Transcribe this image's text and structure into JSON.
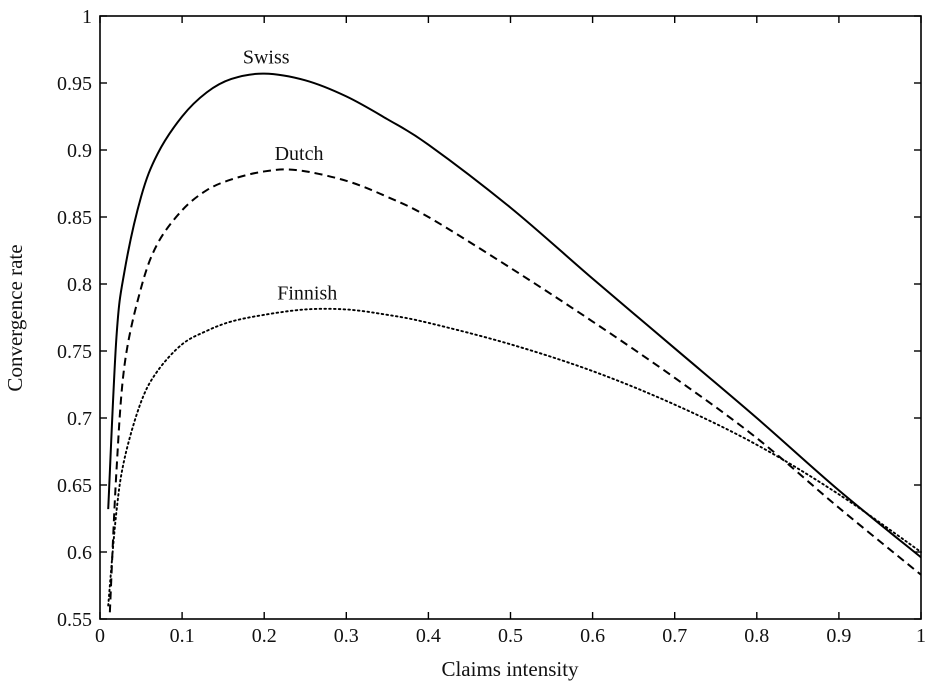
{
  "chart_data": {
    "type": "line",
    "title": "",
    "xlabel": "Claims intensity",
    "ylabel": "Convergence rate",
    "xlim": [
      0,
      1
    ],
    "ylim": [
      0.55,
      1
    ],
    "xticks": [
      "0",
      "0.1",
      "0.2",
      "0.3",
      "0.4",
      "0.5",
      "0.6",
      "0.7",
      "0.8",
      "0.9",
      "1"
    ],
    "yticks": [
      "0.55",
      "0.6",
      "0.65",
      "0.7",
      "0.75",
      "0.8",
      "0.85",
      "0.9",
      "0.95",
      "1"
    ],
    "grid": false,
    "legend": "none",
    "series": [
      {
        "name": "Swiss",
        "style": "solid",
        "color": "#000000",
        "x": [
          0.01,
          0.02,
          0.03,
          0.05,
          0.07,
          0.1,
          0.13,
          0.16,
          0.2,
          0.25,
          0.3,
          0.35,
          0.4,
          0.5,
          0.6,
          0.7,
          0.8,
          0.9,
          1.0
        ],
        "y": [
          0.632,
          0.76,
          0.81,
          0.865,
          0.897,
          0.925,
          0.943,
          0.953,
          0.957,
          0.952,
          0.94,
          0.923,
          0.904,
          0.857,
          0.804,
          0.752,
          0.7,
          0.646,
          0.596
        ]
      },
      {
        "name": "Dutch",
        "style": "dashed",
        "color": "#000000",
        "x": [
          0.012,
          0.02,
          0.03,
          0.05,
          0.07,
          0.1,
          0.13,
          0.16,
          0.2,
          0.24,
          0.3,
          0.35,
          0.4,
          0.5,
          0.6,
          0.7,
          0.8,
          0.9,
          1.0
        ],
        "y": [
          0.555,
          0.66,
          0.74,
          0.797,
          0.83,
          0.855,
          0.87,
          0.878,
          0.884,
          0.885,
          0.877,
          0.865,
          0.85,
          0.812,
          0.772,
          0.73,
          0.685,
          0.633,
          0.583
        ]
      },
      {
        "name": "Finnish",
        "style": "dotted",
        "color": "#000000",
        "x": [
          0.01,
          0.02,
          0.03,
          0.05,
          0.07,
          0.1,
          0.13,
          0.16,
          0.2,
          0.25,
          0.3,
          0.35,
          0.4,
          0.5,
          0.6,
          0.7,
          0.8,
          0.9,
          1.0
        ],
        "y": [
          0.56,
          0.63,
          0.67,
          0.712,
          0.735,
          0.755,
          0.765,
          0.772,
          0.777,
          0.781,
          0.781,
          0.777,
          0.771,
          0.755,
          0.735,
          0.71,
          0.68,
          0.643,
          0.6
        ]
      }
    ]
  }
}
